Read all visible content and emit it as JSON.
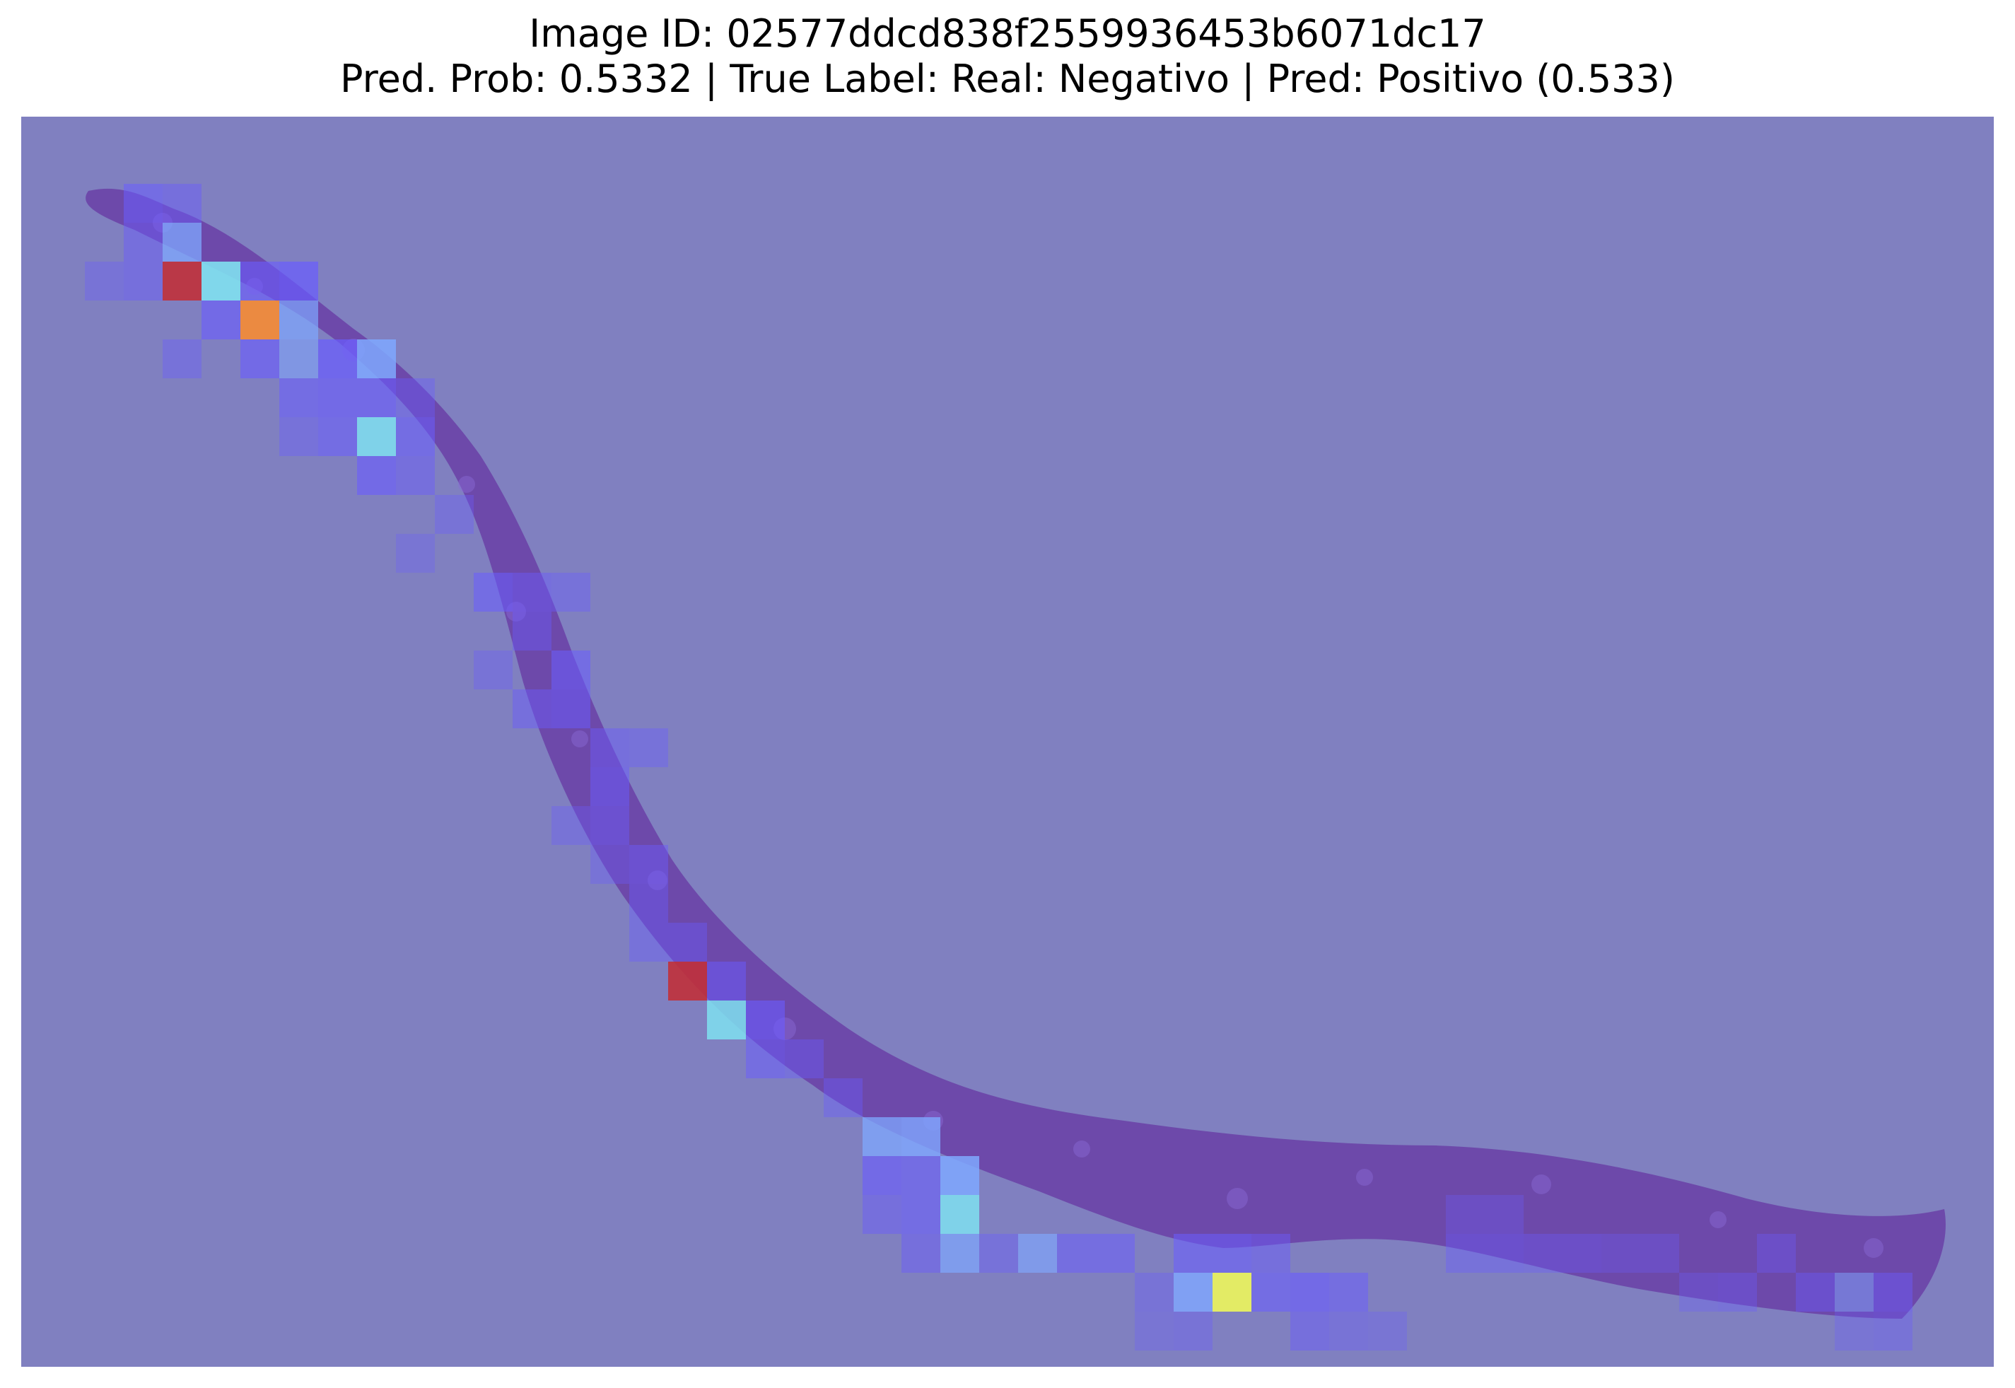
{
  "figure": {
    "title_line1": "Image ID: 02577ddcd838f2559936453b6071dc17",
    "title_line2": "Pred. Prob: 0.5332 | True Label: Real: Negativo | Pred: Positivo (0.533)"
  },
  "overlay": {
    "background_color": "#8080c0",
    "tissue_color": "#6a3fa6",
    "tile_palette": {
      "low": "#6a5cff",
      "mid_low": "#7fa8ff",
      "mid": "#7fe0f0",
      "high_yellow": "#e8f060",
      "high_orange": "#f08a3a",
      "high_red": "#c0303a"
    }
  }
}
